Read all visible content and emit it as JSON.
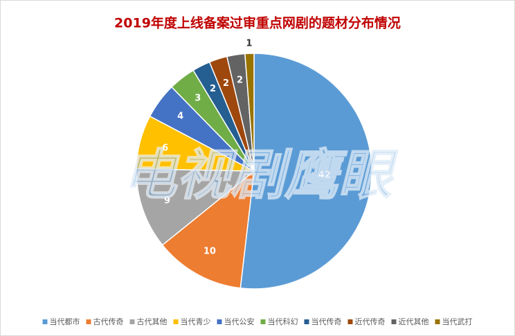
{
  "chart_data": {
    "type": "pie",
    "title": "2019年度上线备案过审重点网剧的题材分布情况",
    "watermark": "电视剧鹰眼",
    "categories": [
      "当代都市",
      "古代传奇",
      "古代其他",
      "当代青少",
      "当代公安",
      "当代科幻",
      "当代传奇",
      "近代传奇",
      "近代其他",
      "当代武打"
    ],
    "values": [
      42,
      10,
      9,
      6,
      4,
      3,
      2,
      2,
      2,
      1
    ],
    "colors": [
      "#5b9bd5",
      "#ed7d31",
      "#a5a5a5",
      "#ffc000",
      "#4472c4",
      "#70ad47",
      "#255e91",
      "#9e480e",
      "#636363",
      "#997300"
    ],
    "legend": "bottom"
  }
}
